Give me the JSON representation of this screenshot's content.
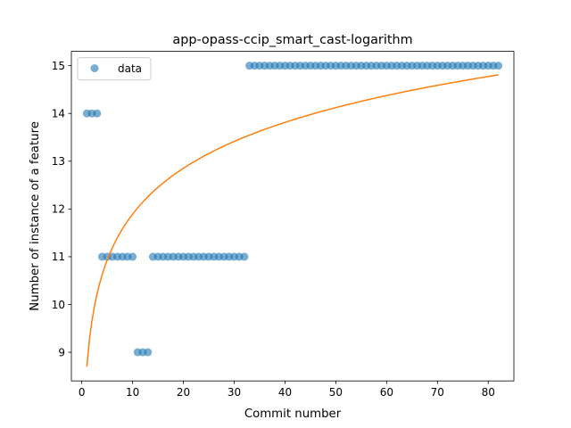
{
  "chart_data": {
    "type": "scatter",
    "title": "app-opass-ccip_smart_cast-logarithm",
    "xlabel": "Commit number",
    "ylabel": "Number of instance of a feature",
    "xlim": [
      -2.05,
      85.05
    ],
    "ylim": [
      8.4,
      15.3
    ],
    "xticks": [
      0,
      10,
      20,
      30,
      40,
      50,
      60,
      70,
      80
    ],
    "yticks": [
      9,
      10,
      11,
      12,
      13,
      14,
      15
    ],
    "grid": false,
    "legend": {
      "position": "top-left",
      "entries": [
        "data"
      ]
    },
    "colors": {
      "data": "#1f77b4",
      "fit": "#ff7f0e"
    },
    "series": [
      {
        "name": "data",
        "kind": "scatter",
        "x": [
          1,
          2,
          3,
          4,
          5,
          6,
          7,
          8,
          9,
          10,
          11,
          12,
          13,
          14,
          15,
          16,
          17,
          18,
          19,
          20,
          21,
          22,
          23,
          24,
          25,
          26,
          27,
          28,
          29,
          30,
          31,
          32,
          33,
          34,
          35,
          36,
          37,
          38,
          39,
          40,
          41,
          42,
          43,
          44,
          45,
          46,
          47,
          48,
          49,
          50,
          51,
          52,
          53,
          54,
          55,
          56,
          57,
          58,
          59,
          60,
          61,
          62,
          63,
          64,
          65,
          66,
          67,
          68,
          69,
          70,
          71,
          72,
          73,
          74,
          75,
          76,
          77,
          78,
          79,
          80,
          81,
          82
        ],
        "y": [
          14,
          14,
          14,
          11,
          11,
          11,
          11,
          11,
          11,
          11,
          9,
          9,
          9,
          11,
          11,
          11,
          11,
          11,
          11,
          11,
          11,
          11,
          11,
          11,
          11,
          11,
          11,
          11,
          11,
          11,
          11,
          11,
          15,
          15,
          15,
          15,
          15,
          15,
          15,
          15,
          15,
          15,
          15,
          15,
          15,
          15,
          15,
          15,
          15,
          15,
          15,
          15,
          15,
          15,
          15,
          15,
          15,
          15,
          15,
          15,
          15,
          15,
          15,
          15,
          15,
          15,
          15,
          15,
          15,
          15,
          15,
          15,
          15,
          15,
          15,
          15,
          15,
          15,
          15,
          15,
          15,
          15
        ]
      },
      {
        "kind": "line",
        "model": "logarithmic",
        "coefficients": {
          "a": 8.7,
          "b": 1.386
        },
        "x_range": [
          1,
          82
        ]
      }
    ]
  }
}
